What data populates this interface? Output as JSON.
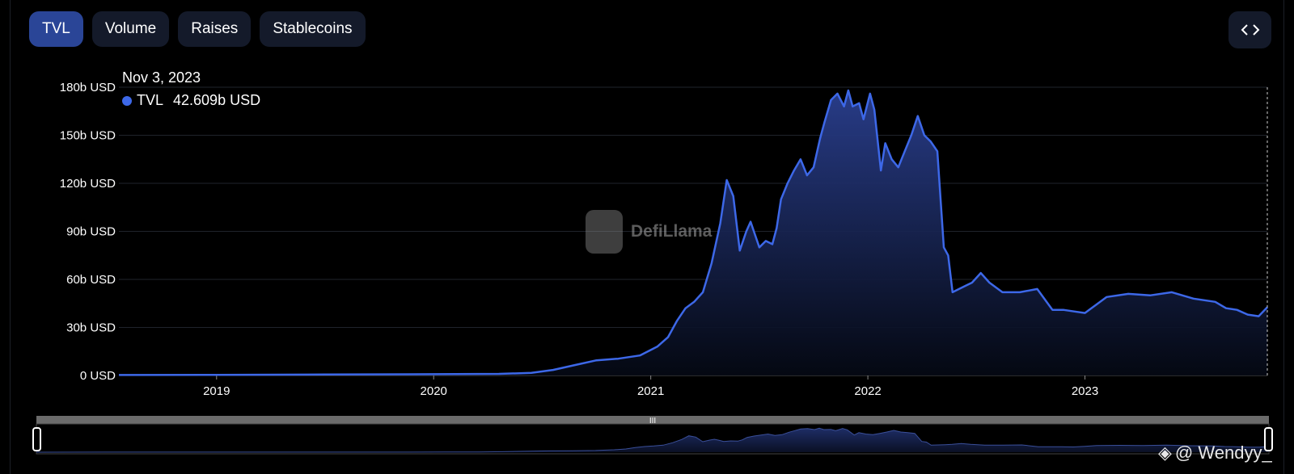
{
  "tabs": [
    {
      "label": "TVL",
      "active": true
    },
    {
      "label": "Volume",
      "active": false
    },
    {
      "label": "Raises",
      "active": false
    },
    {
      "label": "Stablecoins",
      "active": false
    }
  ],
  "embed_icon": "code-brackets-icon",
  "tooltip": {
    "date": "Nov 3, 2023",
    "series": "TVL",
    "value": "42.609b USD"
  },
  "watermark": "DefiLlama",
  "signature": "@ Wendyy_",
  "colors": {
    "background": "#000000",
    "line": "#3d68e8",
    "tab_active": "#2a4597",
    "tab_inactive": "#141a2a"
  },
  "chart_data": {
    "type": "area",
    "title": "",
    "xlabel": "",
    "ylabel": "",
    "unit": "b USD",
    "y_ticks": [
      "0 USD",
      "30b USD",
      "60b USD",
      "90b USD",
      "120b USD",
      "150b USD",
      "180b USD"
    ],
    "ylim": [
      0,
      180
    ],
    "x_ticks": [
      "2019",
      "2020",
      "2021",
      "2022",
      "2023"
    ],
    "xlim": [
      2018.55,
      2023.84
    ],
    "grid": true,
    "legend": "top-left tooltip",
    "series": [
      {
        "name": "TVL",
        "x": [
          2018.55,
          2019.0,
          2019.5,
          2020.0,
          2020.3,
          2020.45,
          2020.55,
          2020.65,
          2020.75,
          2020.85,
          2020.95,
          2021.03,
          2021.08,
          2021.12,
          2021.16,
          2021.2,
          2021.24,
          2021.28,
          2021.32,
          2021.35,
          2021.38,
          2021.41,
          2021.44,
          2021.46,
          2021.48,
          2021.5,
          2021.53,
          2021.56,
          2021.58,
          2021.6,
          2021.63,
          2021.66,
          2021.69,
          2021.72,
          2021.75,
          2021.78,
          2021.8,
          2021.83,
          2021.86,
          2021.89,
          2021.91,
          2021.93,
          2021.96,
          2021.98,
          2022.01,
          2022.03,
          2022.06,
          2022.08,
          2022.11,
          2022.14,
          2022.17,
          2022.2,
          2022.23,
          2022.26,
          2022.29,
          2022.32,
          2022.35,
          2022.37,
          2022.39,
          2022.42,
          2022.45,
          2022.48,
          2022.52,
          2022.56,
          2022.62,
          2022.7,
          2022.78,
          2022.85,
          2022.9,
          2022.95,
          2023.0,
          2023.05,
          2023.1,
          2023.2,
          2023.3,
          2023.4,
          2023.5,
          2023.6,
          2023.65,
          2023.7,
          2023.75,
          2023.8,
          2023.84
        ],
        "values": [
          0.3,
          0.4,
          0.6,
          0.8,
          1.0,
          1.6,
          3.5,
          6.5,
          9.5,
          10.5,
          12.5,
          18.0,
          24.0,
          34.0,
          42.0,
          46.0,
          52.0,
          70.0,
          95.0,
          122.0,
          112.0,
          78.0,
          90.0,
          96.0,
          88.0,
          80.0,
          84.0,
          82.0,
          92.0,
          110.0,
          120.0,
          128.0,
          135.0,
          125.0,
          130.0,
          148.0,
          158.0,
          172.0,
          176.0,
          168.0,
          178.0,
          168.0,
          170.0,
          160.0,
          176.0,
          166.0,
          128.0,
          145.0,
          135.0,
          130.0,
          140.0,
          150.0,
          162.0,
          150.0,
          146.0,
          140.0,
          80.0,
          75.0,
          52.0,
          54.0,
          56.0,
          58.0,
          64.0,
          58.0,
          52.0,
          52.0,
          54.0,
          41.0,
          41.0,
          40.0,
          39.0,
          44.0,
          49.0,
          51.0,
          50.0,
          52.0,
          48.0,
          46.0,
          42.0,
          41.0,
          38.0,
          37.0,
          42.6
        ]
      }
    ]
  }
}
